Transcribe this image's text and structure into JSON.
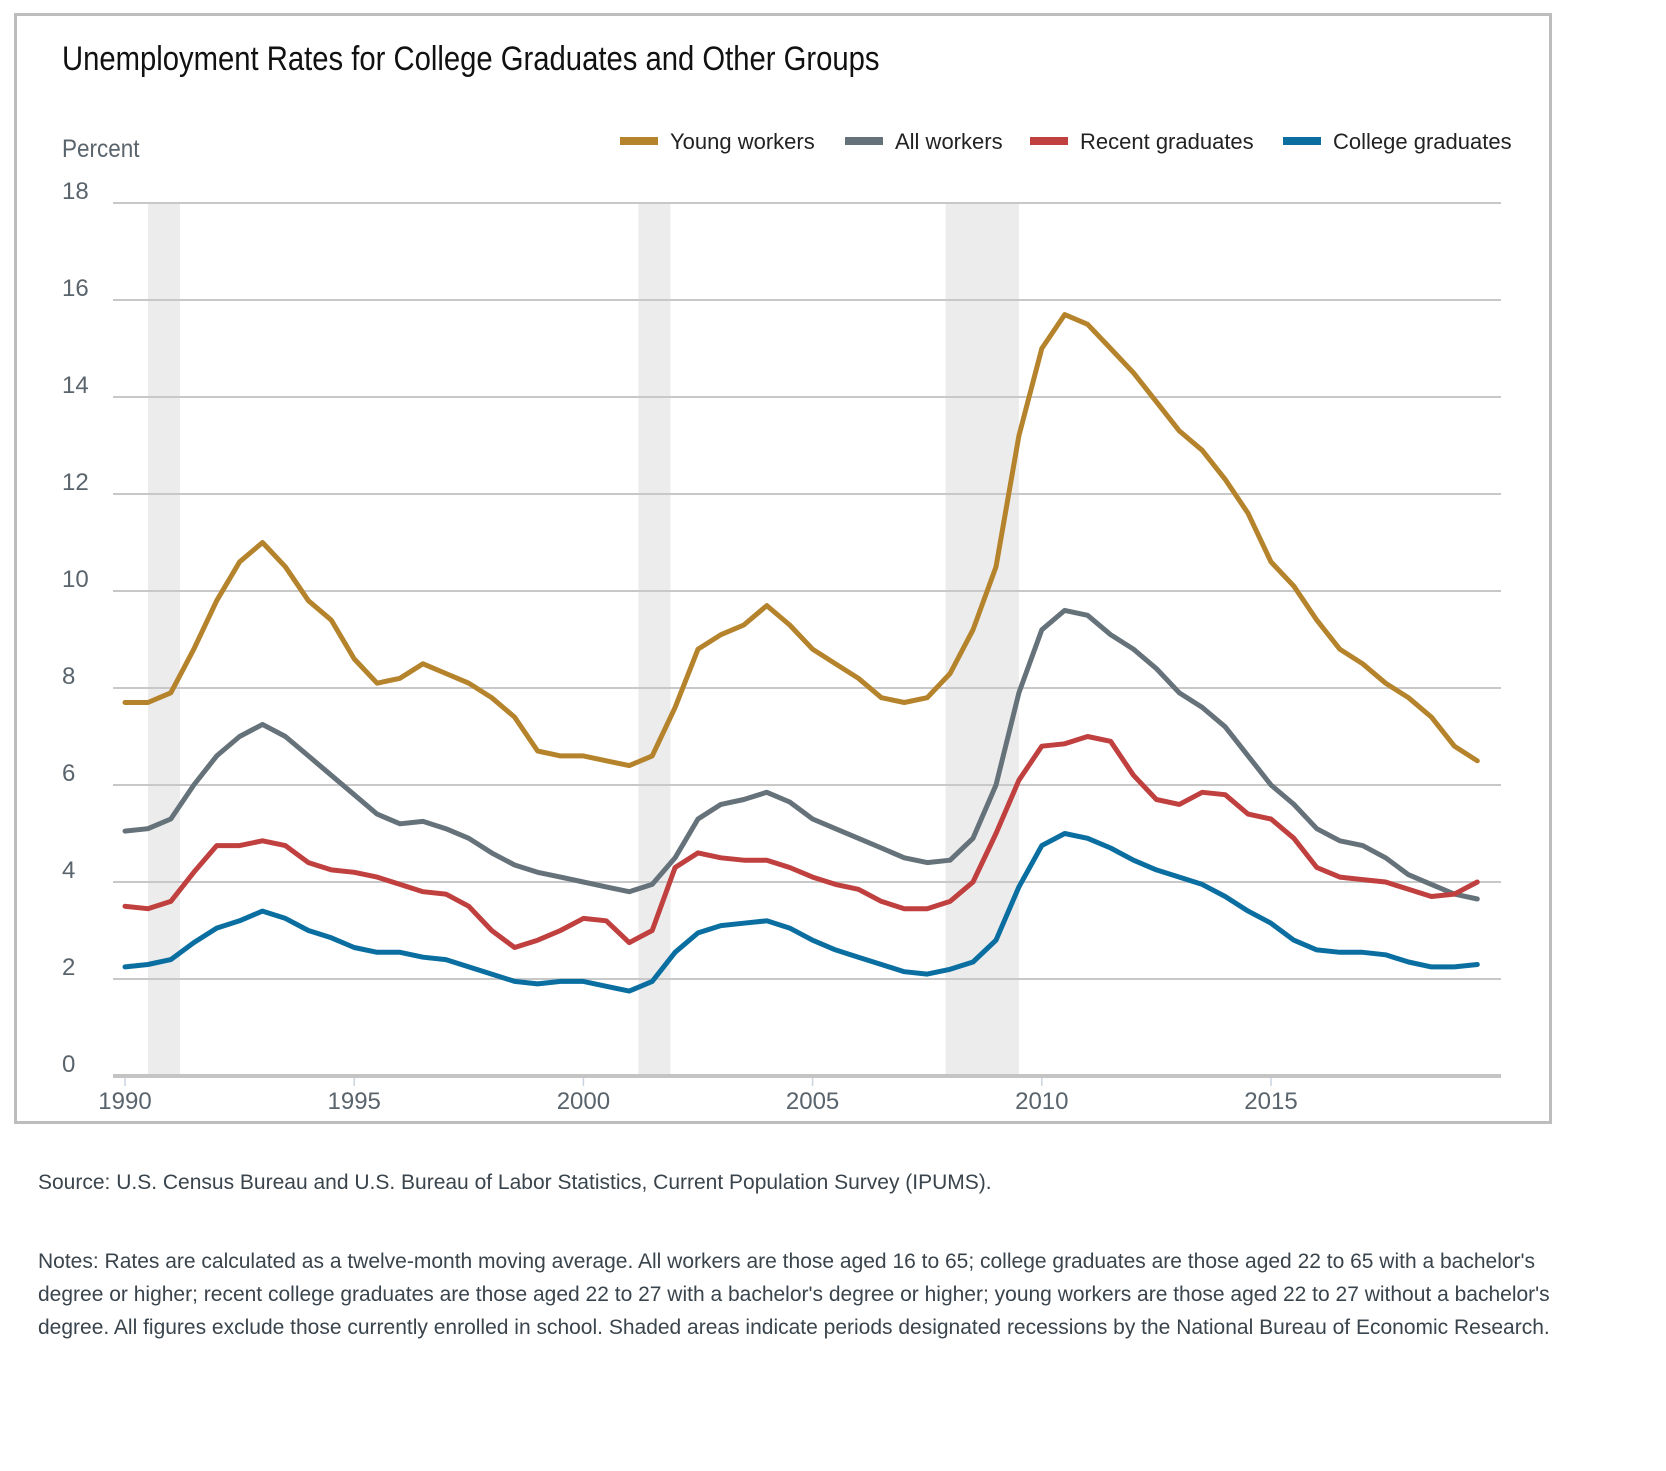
{
  "chart_data": {
    "type": "line",
    "title": "Unemployment Rates for College Graduates and Other Groups",
    "ylabel": "Percent",
    "xlabel": "",
    "xlim": [
      1989.95,
      2019.95
    ],
    "ylim": [
      0,
      18
    ],
    "yticks": [
      "0",
      "2",
      "4",
      "6",
      "8",
      "10",
      "12",
      "14",
      "16",
      "18"
    ],
    "xticks": [
      "1990",
      "1995",
      "2000",
      "2005",
      "2010",
      "2015"
    ],
    "grid": true,
    "legend_position": "top-right",
    "recessions": [
      [
        1990.5,
        1991.2
      ],
      [
        2001.2,
        2001.9
      ],
      [
        2007.9,
        2009.5
      ]
    ],
    "x": [
      1990,
      1990.5,
      1991,
      1991.5,
      1992,
      1992.5,
      1993,
      1993.5,
      1994,
      1994.5,
      1995,
      1995.5,
      1996,
      1996.5,
      1997,
      1997.5,
      1998,
      1998.5,
      1999,
      1999.5,
      2000,
      2000.5,
      2001,
      2001.5,
      2002,
      2002.5,
      2003,
      2003.5,
      2004,
      2004.5,
      2005,
      2005.5,
      2006,
      2006.5,
      2007,
      2007.5,
      2008,
      2008.5,
      2009,
      2009.5,
      2010,
      2010.5,
      2011,
      2011.5,
      2012,
      2012.5,
      2013,
      2013.5,
      2014,
      2014.5,
      2015,
      2015.5,
      2016,
      2016.5,
      2017,
      2017.5,
      2018,
      2018.5,
      2019,
      2019.5
    ],
    "series": [
      {
        "name": "Young workers",
        "color": "#b5832b",
        "values": [
          7.7,
          7.7,
          7.9,
          8.8,
          9.8,
          10.6,
          11.0,
          10.5,
          9.8,
          9.4,
          8.6,
          8.1,
          8.2,
          8.5,
          8.3,
          8.1,
          7.8,
          7.4,
          6.7,
          6.6,
          6.6,
          6.5,
          6.4,
          6.6,
          7.6,
          8.8,
          9.1,
          9.3,
          9.7,
          9.3,
          8.8,
          8.5,
          8.2,
          7.8,
          7.7,
          7.8,
          8.3,
          9.2,
          10.5,
          13.2,
          15.0,
          15.7,
          15.5,
          15.0,
          14.5,
          13.9,
          13.3,
          12.9,
          12.3,
          11.6,
          10.6,
          10.1,
          9.4,
          8.8,
          8.5,
          8.1,
          7.8,
          7.4,
          6.8,
          6.5
        ]
      },
      {
        "name": "All workers",
        "color": "#66727a",
        "values": [
          5.05,
          5.1,
          5.3,
          6.0,
          6.6,
          7.0,
          7.25,
          7.0,
          6.6,
          6.2,
          5.8,
          5.4,
          5.2,
          5.25,
          5.1,
          4.9,
          4.6,
          4.35,
          4.2,
          4.1,
          4.0,
          3.9,
          3.8,
          3.95,
          4.5,
          5.3,
          5.6,
          5.7,
          5.85,
          5.65,
          5.3,
          5.1,
          4.9,
          4.7,
          4.5,
          4.4,
          4.45,
          4.9,
          6.0,
          7.9,
          9.2,
          9.6,
          9.5,
          9.1,
          8.8,
          8.4,
          7.9,
          7.6,
          7.2,
          6.6,
          6.0,
          5.6,
          5.1,
          4.85,
          4.75,
          4.5,
          4.15,
          3.95,
          3.75,
          3.65
        ]
      },
      {
        "name": "Recent graduates",
        "color": "#c0403f",
        "values": [
          3.5,
          3.45,
          3.6,
          4.2,
          4.75,
          4.75,
          4.85,
          4.75,
          4.4,
          4.25,
          4.2,
          4.1,
          3.95,
          3.8,
          3.75,
          3.5,
          3.0,
          2.65,
          2.8,
          3.0,
          3.25,
          3.2,
          2.75,
          3.0,
          4.3,
          4.6,
          4.5,
          4.45,
          4.45,
          4.3,
          4.1,
          3.95,
          3.85,
          3.6,
          3.45,
          3.45,
          3.6,
          4.0,
          5.0,
          6.1,
          6.8,
          6.85,
          7.0,
          6.9,
          6.2,
          5.7,
          5.6,
          5.85,
          5.8,
          5.4,
          5.3,
          4.9,
          4.3,
          4.1,
          4.05,
          4.0,
          3.85,
          3.7,
          3.75,
          4.0
        ]
      },
      {
        "name": "College graduates",
        "color": "#0a6fa0",
        "values": [
          2.25,
          2.3,
          2.4,
          2.75,
          3.05,
          3.2,
          3.4,
          3.25,
          3.0,
          2.85,
          2.65,
          2.55,
          2.55,
          2.45,
          2.4,
          2.25,
          2.1,
          1.95,
          1.9,
          1.95,
          1.95,
          1.85,
          1.75,
          1.95,
          2.55,
          2.95,
          3.1,
          3.15,
          3.2,
          3.05,
          2.8,
          2.6,
          2.45,
          2.3,
          2.15,
          2.1,
          2.2,
          2.35,
          2.8,
          3.9,
          4.75,
          5.0,
          4.9,
          4.7,
          4.45,
          4.25,
          4.1,
          3.95,
          3.7,
          3.4,
          3.15,
          2.8,
          2.6,
          2.55,
          2.55,
          2.5,
          2.35,
          2.25,
          2.25,
          2.3
        ]
      }
    ],
    "colors": {
      "grid": "#c8c8c8",
      "recession": "#ececec",
      "axis_text": "#5a646c"
    }
  },
  "footer": {
    "source": "Source: U.S. Census Bureau and U.S. Bureau of Labor Statistics, Current Population Survey (IPUMS).",
    "notes": "Notes: Rates are calculated as a twelve-month moving average. All workers are those aged 16 to 65; college graduates are those aged 22 to 65 with a bachelor's degree or higher; recent college graduates are those aged 22 to 27 with a bachelor's degree or higher; young workers are those aged 22 to 27 without a bachelor's degree. All figures exclude those currently enrolled in school. Shaded areas indicate periods designated recessions by the National Bureau of Economic Research."
  }
}
